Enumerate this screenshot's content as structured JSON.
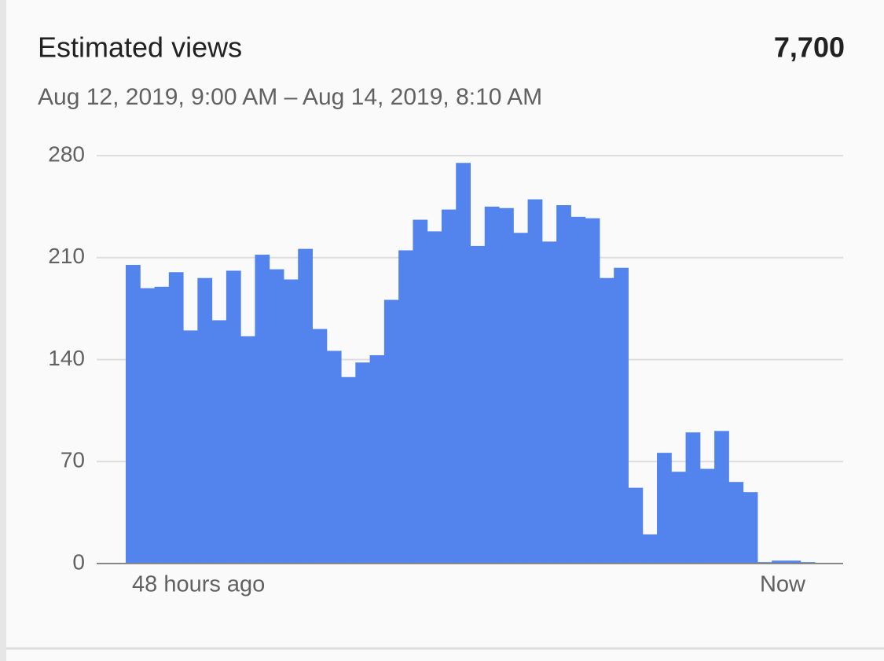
{
  "header": {
    "title": "Estimated views",
    "total": "7,700",
    "subtitle": "Aug 12, 2019, 9:00 AM – Aug 14, 2019, 8:10 AM"
  },
  "chart_data": {
    "type": "bar",
    "color": "#5383ec",
    "grid": true,
    "categories": [
      "48 hours ago",
      null,
      null,
      null,
      null,
      null,
      null,
      null,
      null,
      null,
      null,
      null,
      null,
      null,
      null,
      null,
      null,
      null,
      null,
      null,
      null,
      null,
      null,
      null,
      null,
      null,
      null,
      null,
      null,
      null,
      null,
      null,
      null,
      null,
      null,
      null,
      null,
      null,
      null,
      null,
      null,
      null,
      null,
      null,
      null,
      null,
      null,
      "Now"
    ],
    "values": [
      205,
      189,
      190,
      200,
      160,
      196,
      167,
      201,
      156,
      212,
      202,
      195,
      216,
      161,
      146,
      128,
      138,
      143,
      181,
      215,
      236,
      228,
      243,
      275,
      218,
      245,
      244,
      227,
      250,
      221,
      246,
      238,
      237,
      196,
      203,
      52,
      20,
      76,
      63,
      90,
      65,
      91,
      56,
      49,
      1,
      2,
      2,
      1
    ],
    "ylim": [
      0,
      280
    ],
    "yticks": [
      0,
      70,
      140,
      210,
      280
    ]
  }
}
